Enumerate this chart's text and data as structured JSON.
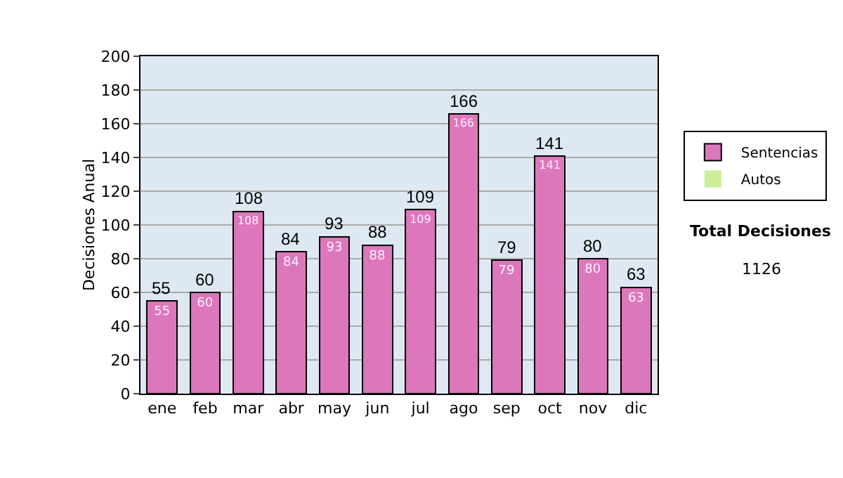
{
  "chart_data": {
    "type": "bar",
    "ylabel": "Decisiones Anual",
    "categories": [
      "ene",
      "feb",
      "mar",
      "abr",
      "may",
      "jun",
      "jul",
      "ago",
      "sep",
      "oct",
      "nov",
      "dic"
    ],
    "series": [
      {
        "name": "Sentencias",
        "color": "#dd77bb",
        "values": [
          55,
          60,
          108,
          84,
          93,
          88,
          109,
          166,
          79,
          141,
          80,
          63
        ],
        "value_labels": [
          "55",
          "60",
          "108",
          "84",
          "93",
          "88",
          "109",
          "166",
          "79",
          "141",
          "80",
          "63"
        ]
      },
      {
        "name": "Autos",
        "color": "#ccee99",
        "values": [
          0,
          0,
          0,
          0,
          0,
          0,
          0,
          0,
          0,
          0,
          0,
          0
        ],
        "value_labels": [
          null,
          null,
          null,
          null,
          null,
          null,
          null,
          null,
          null,
          null,
          null,
          null
        ]
      }
    ],
    "stacked": true,
    "totals": [
      "55",
      "60",
      "108",
      "84",
      "93",
      "88",
      "109",
      "166",
      "79",
      "141",
      "80",
      "63"
    ],
    "ylim": [
      0,
      200
    ],
    "yticks": [
      0,
      20,
      40,
      60,
      80,
      100,
      120,
      140,
      160,
      180,
      200
    ],
    "grid": "y",
    "legend": "right",
    "annotations": [
      "Total Decisiones",
      "1126"
    ]
  }
}
